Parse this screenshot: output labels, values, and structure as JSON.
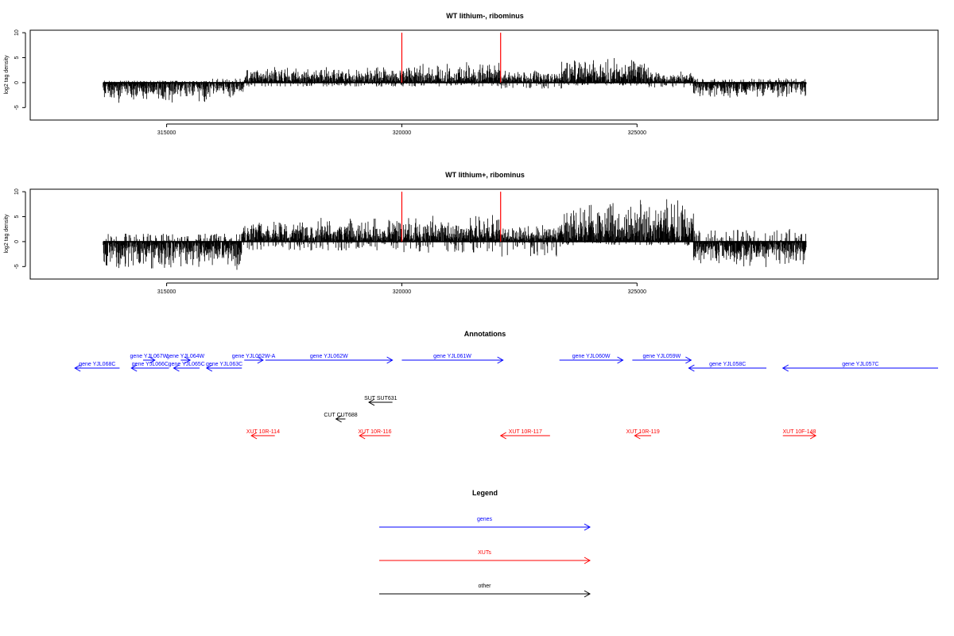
{
  "colors": {
    "gene": "#0000ff",
    "xut": "#ff0000",
    "other": "#000000",
    "marker": "#ff0000",
    "bars": "#000000"
  },
  "chart_data": [
    {
      "type": "bar",
      "title": "WT lithium-, ribominus",
      "ylabel": "log2 tag density",
      "xlim": [
        312100,
        331400
      ],
      "ylim": [
        -7.5,
        10.5
      ],
      "yticks": [
        -5,
        0,
        5,
        10
      ],
      "xticks": [
        315000,
        320000,
        325000
      ],
      "markers": [
        320000,
        322100
      ],
      "marker_height": 10,
      "regions": [
        {
          "start": 313650,
          "end": 315950,
          "min": -4.3,
          "max": 0.4
        },
        {
          "start": 315950,
          "end": 316650,
          "min": -3.5,
          "max": 0.8
        },
        {
          "start": 316650,
          "end": 320000,
          "min": -0.8,
          "max": 3.6
        },
        {
          "start": 320000,
          "end": 322100,
          "min": -0.8,
          "max": 4.2
        },
        {
          "start": 322100,
          "end": 323400,
          "min": -1.2,
          "max": 2.8
        },
        {
          "start": 323400,
          "end": 325250,
          "min": -0.6,
          "max": 5.2
        },
        {
          "start": 325250,
          "end": 326200,
          "min": -1.0,
          "max": 2.5
        },
        {
          "start": 326200,
          "end": 328600,
          "min": -3.2,
          "max": 0.9
        }
      ]
    },
    {
      "type": "bar",
      "title": "WT lithium+, ribominus",
      "ylabel": "log2 tag density",
      "xlim": [
        312100,
        331400
      ],
      "ylim": [
        -7.5,
        10.5
      ],
      "yticks": [
        -5,
        0,
        5,
        10
      ],
      "xticks": [
        315000,
        320000,
        325000
      ],
      "markers": [
        320000,
        322100
      ],
      "marker_height": 10,
      "regions": [
        {
          "start": 313650,
          "end": 316600,
          "min": -6.0,
          "max": 1.6
        },
        {
          "start": 316600,
          "end": 320000,
          "min": -1.8,
          "max": 5.0
        },
        {
          "start": 320000,
          "end": 322100,
          "min": -2.2,
          "max": 5.5
        },
        {
          "start": 322100,
          "end": 323400,
          "min": -3.0,
          "max": 3.5
        },
        {
          "start": 323400,
          "end": 326200,
          "min": -0.8,
          "max": 9.2
        },
        {
          "start": 326200,
          "end": 328600,
          "min": -5.5,
          "max": 2.6
        }
      ]
    }
  ],
  "annotations": {
    "title": "Annotations",
    "features": [
      {
        "label": "gene YJL068C",
        "type": "gene",
        "start": 314000,
        "end": 313050,
        "row": 1
      },
      {
        "label": "gene YJL067W",
        "type": "gene",
        "start": 314500,
        "end": 314750,
        "row": 0
      },
      {
        "label": "gene YJL066C",
        "type": "gene",
        "start": 315050,
        "end": 314250,
        "row": 1
      },
      {
        "label": "gene YJL064W",
        "type": "gene",
        "start": 315300,
        "end": 315500,
        "row": 0
      },
      {
        "label": "gene YJL065C",
        "type": "gene",
        "start": 315700,
        "end": 315150,
        "row": 1
      },
      {
        "label": "gene YJL063C",
        "type": "gene",
        "start": 316600,
        "end": 315850,
        "row": 1
      },
      {
        "label": "gene YJL062W-A",
        "type": "gene",
        "start": 316650,
        "end": 317050,
        "row": 0
      },
      {
        "label": "gene YJL062W",
        "type": "gene",
        "start": 317100,
        "end": 319800,
        "row": 0
      },
      {
        "label": "gene YJL061W",
        "type": "gene",
        "start": 320000,
        "end": 322150,
        "row": 0
      },
      {
        "label": "gene YJL060W",
        "type": "gene",
        "start": 323350,
        "end": 324700,
        "row": 0
      },
      {
        "label": "gene YJL059W",
        "type": "gene",
        "start": 324900,
        "end": 326150,
        "row": 0
      },
      {
        "label": "gene YJL058C",
        "type": "gene",
        "start": 327750,
        "end": 326100,
        "row": 1
      },
      {
        "label": "gene YJL057C",
        "type": "gene",
        "start": 331400,
        "end": 328100,
        "row": 1
      },
      {
        "label": "SUT SUT631",
        "type": "other",
        "start": 319800,
        "end": 319300,
        "row": 2
      },
      {
        "label": "CUT CUT688",
        "type": "other",
        "start": 318800,
        "end": 318600,
        "row": 3
      },
      {
        "label": "XUT 10R-114",
        "type": "xut",
        "start": 317300,
        "end": 316800,
        "row": 4
      },
      {
        "label": "XUT 10R-116",
        "type": "xut",
        "start": 319750,
        "end": 319100,
        "row": 4
      },
      {
        "label": "XUT 10R-117",
        "type": "xut",
        "start": 323150,
        "end": 322100,
        "row": 4
      },
      {
        "label": "XUT 10R-119",
        "type": "xut",
        "start": 325300,
        "end": 324950,
        "row": 4
      },
      {
        "label": "XUT 10F-148",
        "type": "xut",
        "start": 328100,
        "end": 328800,
        "row": 4,
        "forward_label_above": true
      }
    ]
  },
  "legend": {
    "title": "Legend",
    "items": [
      {
        "label": "genes",
        "type": "gene"
      },
      {
        "label": "XUTs",
        "type": "xut"
      },
      {
        "label": "other",
        "type": "other"
      }
    ]
  }
}
